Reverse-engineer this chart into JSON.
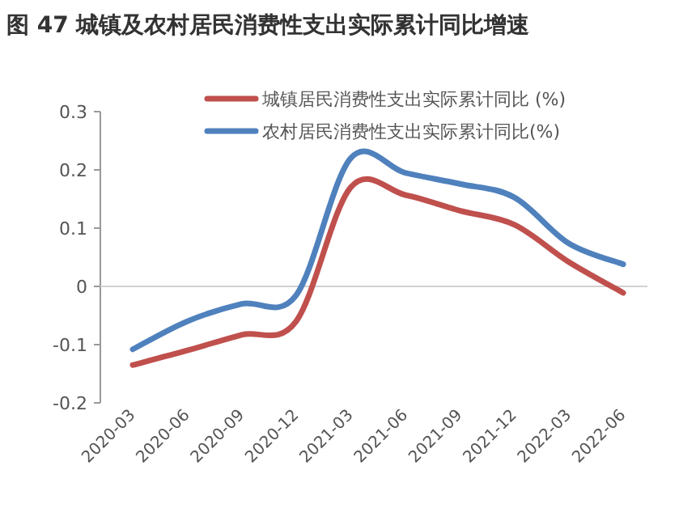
{
  "chart_data": {
    "type": "line",
    "title": "图 47  城镇及农村居民消费性支出实际累计同比增速",
    "categories": [
      "2020-03",
      "2020-06",
      "2020-09",
      "2020-12",
      "2021-03",
      "2021-06",
      "2021-09",
      "2021-12",
      "2022-03",
      "2022-06"
    ],
    "series": [
      {
        "name": "城镇居民消费性支出实际累计同比 (%)",
        "color": "#c0504d",
        "values": [
          -0.135,
          -0.11,
          -0.083,
          -0.06,
          0.17,
          0.157,
          0.13,
          0.106,
          0.042,
          -0.011
        ]
      },
      {
        "name": "农村居民消费性支出实际累计同比(%)",
        "color": "#4f81bd",
        "values": [
          -0.108,
          -0.06,
          -0.03,
          -0.015,
          0.22,
          0.195,
          0.176,
          0.153,
          0.074,
          0.038
        ]
      }
    ],
    "ylim": [
      -0.2,
      0.3
    ],
    "yticks": [
      -0.2,
      -0.1,
      0,
      0.1,
      0.2,
      0.3
    ],
    "legend": "top right"
  }
}
